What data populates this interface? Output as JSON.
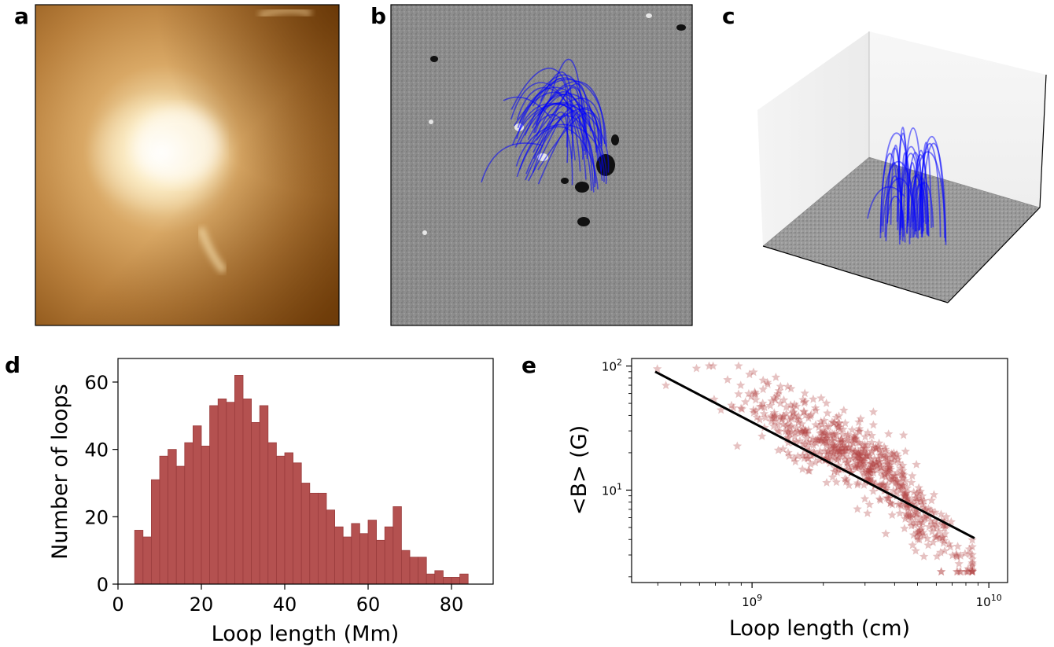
{
  "panels": {
    "a": {
      "letter": "a"
    },
    "b": {
      "letter": "b"
    },
    "c": {
      "letter": "c"
    },
    "d": {
      "letter": "d"
    },
    "e": {
      "letter": "e"
    }
  },
  "colors": {
    "euv_dark": "#5a2c00",
    "euv_mid": "#c38a40",
    "euv_bright": "#fff6dc",
    "magnetogram_gray": "#8c8c8c",
    "fieldline_blue": "#0000ff",
    "hist_bar": "#b45150",
    "hist_edge": "#9a3c3c",
    "scatter_star": "#b04040",
    "fit_line": "#000000"
  },
  "chart_data": [
    {
      "panel": "d",
      "type": "bar",
      "xlabel": "Loop length (Mm)",
      "ylabel": "Number of loops",
      "xlim": [
        0,
        90
      ],
      "ylim": [
        0,
        67
      ],
      "xticks": [
        0,
        20,
        40,
        60,
        80
      ],
      "yticks": [
        0,
        20,
        40,
        60
      ],
      "bin_start": 4,
      "bin_width": 2,
      "values": [
        16,
        14,
        31,
        38,
        40,
        35,
        42,
        47,
        41,
        53,
        55,
        54,
        62,
        55,
        48,
        53,
        42,
        38,
        39,
        36,
        30,
        27,
        27,
        22,
        17,
        14,
        18,
        15,
        19,
        13,
        17,
        23,
        10,
        8,
        8,
        3,
        4,
        2,
        2,
        3
      ],
      "grid": false
    },
    {
      "panel": "e",
      "type": "scatter",
      "xscale": "log",
      "yscale": "log",
      "xlabel": "Loop length (cm)",
      "ylabel": "<B> (G)",
      "xlim": [
        310000000,
        12000000000
      ],
      "ylim": [
        1.8,
        115
      ],
      "xticks": [
        {
          "value": 1000000000,
          "base": "10",
          "exp": "9"
        },
        {
          "value": 10000000000,
          "base": "10",
          "exp": "10"
        }
      ],
      "yticks": [
        {
          "value": 10,
          "base": "10",
          "exp": "1"
        },
        {
          "value": 100,
          "base": "10",
          "exp": "2"
        }
      ],
      "marker": "star",
      "fit_line": {
        "x": [
          390000000,
          8700000000
        ],
        "y": [
          90,
          4.1
        ]
      },
      "n_points": 700,
      "grid": false
    }
  ]
}
